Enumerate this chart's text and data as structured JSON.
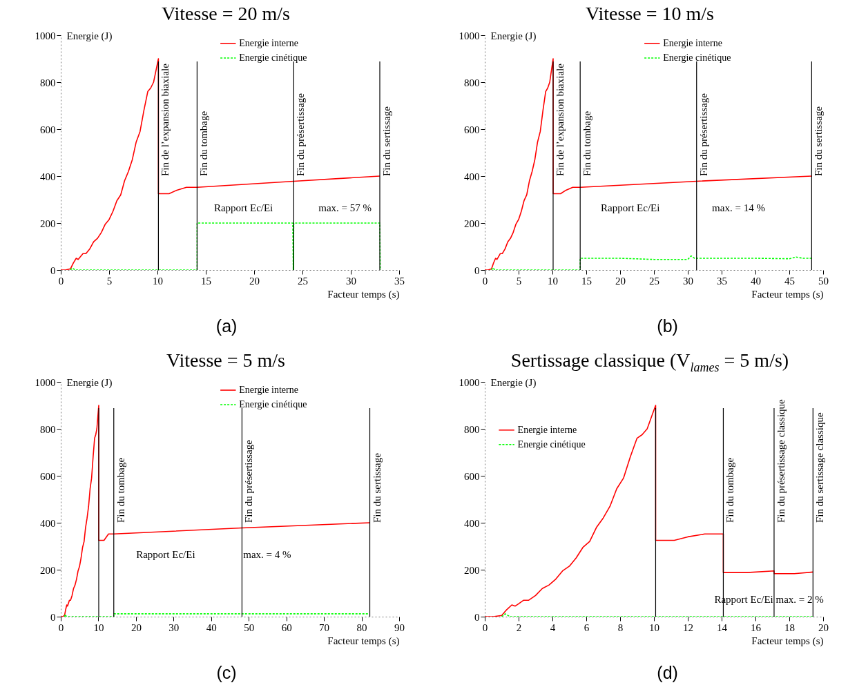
{
  "chart_data": [
    {
      "type": "line",
      "title": "Vitesse = 20 m/s",
      "xlabel": "Facteur temps (s)",
      "ylabel": "Energie (J)",
      "xlim": [
        0,
        35
      ],
      "xticks": [
        0,
        5,
        10,
        15,
        20,
        25,
        30,
        35
      ],
      "ylim": [
        0,
        1000
      ],
      "yticks": [
        0,
        200,
        400,
        600,
        800,
        1000
      ],
      "legend": "top",
      "series": [
        {
          "name": "Energie interne",
          "color": "#ff0000",
          "line_style": "solid",
          "x": [
            0,
            0.5,
            1,
            1.3,
            1.6,
            1.8,
            2,
            2.3,
            2.6,
            3,
            3.4,
            3.8,
            4.2,
            4.6,
            5,
            5.4,
            5.8,
            6.2,
            6.6,
            7,
            7.4,
            7.8,
            8.2,
            8.6,
            9,
            9.3,
            9.6,
            9.9,
            10.1,
            10.1,
            11.2,
            12,
            13,
            14.1,
            24.1,
            33
          ],
          "values": [
            0,
            0,
            5,
            30,
            50,
            45,
            55,
            70,
            70,
            90,
            120,
            135,
            160,
            195,
            215,
            250,
            295,
            320,
            380,
            420,
            470,
            545,
            590,
            680,
            760,
            775,
            800,
            860,
            900,
            325,
            325,
            340,
            352,
            352,
            378,
            400
          ]
        },
        {
          "name": "Energie cinétique",
          "color": "#00ff00",
          "line_style": "dashed",
          "x": [
            1,
            1.2,
            1.5,
            10,
            10.1,
            14.1,
            14.1,
            24,
            24.05,
            24.1,
            33,
            33.05
          ],
          "values": [
            0,
            8,
            0,
            0,
            0,
            0,
            200,
            200,
            0,
            200,
            200,
            0
          ]
        }
      ],
      "ref_lines": [
        {
          "axis": "x",
          "value": 10.1,
          "label": "Fin de l’expansion biaxiale"
        },
        {
          "axis": "x",
          "value": 14.1,
          "label": "Fin du tombage"
        },
        {
          "axis": "x",
          "value": 24.1,
          "label": "Fin du présertissage"
        },
        {
          "axis": "x",
          "value": 33,
          "label": "Fin du sertissage"
        }
      ],
      "annotations": [
        "Rapport Ec/Ei",
        "max. = 57 %",
        "(a)"
      ]
    },
    {
      "type": "line",
      "title": "Vitesse = 10 m/s",
      "xlabel": "Facteur temps (s)",
      "ylabel": "Energie (J)",
      "xlim": [
        0,
        50
      ],
      "xticks": [
        0,
        5,
        10,
        15,
        20,
        25,
        30,
        35,
        40,
        45,
        50
      ],
      "ylim": [
        0,
        1000
      ],
      "yticks": [
        0,
        200,
        400,
        600,
        800,
        1000
      ],
      "legend": "top",
      "series": [
        {
          "name": "Energie interne",
          "color": "#ff0000",
          "line_style": "solid",
          "x": [
            0,
            0.5,
            1,
            1.3,
            1.6,
            1.8,
            2,
            2.3,
            2.6,
            3,
            3.4,
            3.8,
            4.2,
            4.6,
            5,
            5.4,
            5.8,
            6.2,
            6.6,
            7,
            7.4,
            7.8,
            8.2,
            8.6,
            9,
            9.3,
            9.6,
            9.9,
            10.1,
            10.1,
            11.2,
            12,
            13,
            14.1,
            31.3,
            48.3
          ],
          "values": [
            0,
            0,
            5,
            30,
            50,
            45,
            55,
            70,
            70,
            90,
            120,
            135,
            160,
            195,
            215,
            250,
            295,
            320,
            380,
            420,
            470,
            545,
            590,
            680,
            760,
            775,
            800,
            860,
            900,
            325,
            325,
            340,
            352,
            352,
            378,
            400
          ]
        },
        {
          "name": "Energie cinétique",
          "color": "#00ff00",
          "line_style": "dashed",
          "x": [
            1,
            1.2,
            1.5,
            14.1,
            14.1,
            20,
            25,
            30,
            30.5,
            31,
            35,
            40,
            45,
            46,
            47,
            48.3
          ],
          "values": [
            0,
            10,
            0,
            0,
            50,
            50,
            45,
            45,
            60,
            50,
            50,
            50,
            48,
            55,
            50,
            50
          ]
        }
      ],
      "ref_lines": [
        {
          "axis": "x",
          "value": 10.1,
          "label": "Fin de l’expansion biaxiale"
        },
        {
          "axis": "x",
          "value": 14.1,
          "label": "Fin du tombage"
        },
        {
          "axis": "x",
          "value": 31.3,
          "label": "Fin du présertissage"
        },
        {
          "axis": "x",
          "value": 48.3,
          "label": "Fin du sertissage"
        }
      ],
      "annotations": [
        "Rapport Ec/Ei",
        "max. = 14 %",
        "(b)"
      ]
    },
    {
      "type": "line",
      "title": "Vitesse = 5 m/s",
      "xlabel": "Facteur temps (s)",
      "ylabel": "Energie (J)",
      "xlim": [
        0,
        90
      ],
      "xticks": [
        0,
        10,
        20,
        30,
        40,
        50,
        60,
        70,
        80,
        90
      ],
      "ylim": [
        0,
        1000
      ],
      "yticks": [
        0,
        200,
        400,
        600,
        800,
        1000
      ],
      "legend": "top",
      "series": [
        {
          "name": "Energie interne",
          "color": "#ff0000",
          "line_style": "solid",
          "x": [
            0,
            0.5,
            1,
            1.3,
            1.6,
            1.8,
            2,
            2.3,
            2.6,
            3,
            3.4,
            3.8,
            4.2,
            4.6,
            5,
            5.4,
            5.8,
            6.2,
            6.6,
            7,
            7.4,
            7.8,
            8.2,
            8.6,
            9,
            9.3,
            9.6,
            9.9,
            10.1,
            10.1,
            11.5,
            12.7,
            14.1,
            48.2,
            82.2
          ],
          "values": [
            0,
            0,
            5,
            30,
            50,
            45,
            55,
            70,
            70,
            90,
            120,
            135,
            160,
            195,
            215,
            250,
            295,
            320,
            380,
            420,
            470,
            545,
            590,
            680,
            760,
            775,
            800,
            860,
            900,
            325,
            325,
            352,
            352,
            378,
            400
          ]
        },
        {
          "name": "Energie cinétique",
          "color": "#00ff00",
          "line_style": "dashed",
          "x": [
            1,
            1.2,
            1.5,
            14.1,
            14.1,
            48,
            82
          ],
          "values": [
            0,
            10,
            0,
            0,
            12,
            12,
            12
          ]
        }
      ],
      "ref_lines": [
        {
          "axis": "x",
          "value": 10.1,
          "label": null
        },
        {
          "axis": "x",
          "value": 14.1,
          "label": "Fin du tombage"
        },
        {
          "axis": "x",
          "value": 48.2,
          "label": "Fin du présertissage"
        },
        {
          "axis": "x",
          "value": 82.2,
          "label": "Fin du sertissage"
        }
      ],
      "annotations": [
        "Rapport Ec/Ei",
        "max. = 4 %",
        "(c)"
      ]
    },
    {
      "type": "line",
      "title": "Sertissage classique (V$_{lames}$ = 5 m/s)",
      "xlabel": "Facteur temps (s)",
      "ylabel": "Energie (J)",
      "xlim": [
        0,
        20
      ],
      "xticks": [
        0,
        2,
        4,
        6,
        8,
        10,
        12,
        14,
        16,
        18,
        20
      ],
      "ylim": [
        0,
        1000
      ],
      "yticks": [
        0,
        200,
        400,
        600,
        800,
        1000
      ],
      "legend": "top left",
      "series": [
        {
          "name": "Energie interne",
          "color": "#ff0000",
          "line_style": "solid",
          "x": [
            0,
            0.5,
            1,
            1.3,
            1.6,
            1.8,
            2,
            2.3,
            2.6,
            3,
            3.4,
            3.8,
            4.2,
            4.6,
            5,
            5.4,
            5.8,
            6.2,
            6.6,
            7,
            7.4,
            7.8,
            8.2,
            8.6,
            9,
            9.3,
            9.6,
            9.9,
            10.1,
            10.1,
            11.2,
            12,
            13,
            14.1,
            14.1,
            15.5,
            17.1,
            17.1,
            18.3,
            19.4
          ],
          "values": [
            0,
            0,
            5,
            30,
            50,
            45,
            55,
            70,
            70,
            90,
            120,
            135,
            160,
            195,
            215,
            250,
            295,
            320,
            380,
            420,
            470,
            545,
            590,
            680,
            760,
            775,
            800,
            860,
            900,
            325,
            325,
            340,
            352,
            352,
            188,
            188,
            195,
            183,
            183,
            190
          ]
        },
        {
          "name": "Energie cinétique",
          "color": "#00ff00",
          "line_style": "dashed",
          "x": [
            1,
            1.2,
            1.5,
            10,
            19.4
          ],
          "values": [
            0,
            12,
            0,
            0,
            0
          ]
        }
      ],
      "ref_lines": [
        {
          "axis": "x",
          "value": 10.1,
          "label": null
        },
        {
          "axis": "x",
          "value": 14.1,
          "label": "Fin du tombage"
        },
        {
          "axis": "x",
          "value": 17.1,
          "label": "Fin du présertissage classique"
        },
        {
          "axis": "x",
          "value": 19.4,
          "label": "Fin du sertissage classique"
        }
      ],
      "annotations": [
        "Rapport Ec/Ei max. = 2 %",
        "(d)"
      ]
    }
  ]
}
